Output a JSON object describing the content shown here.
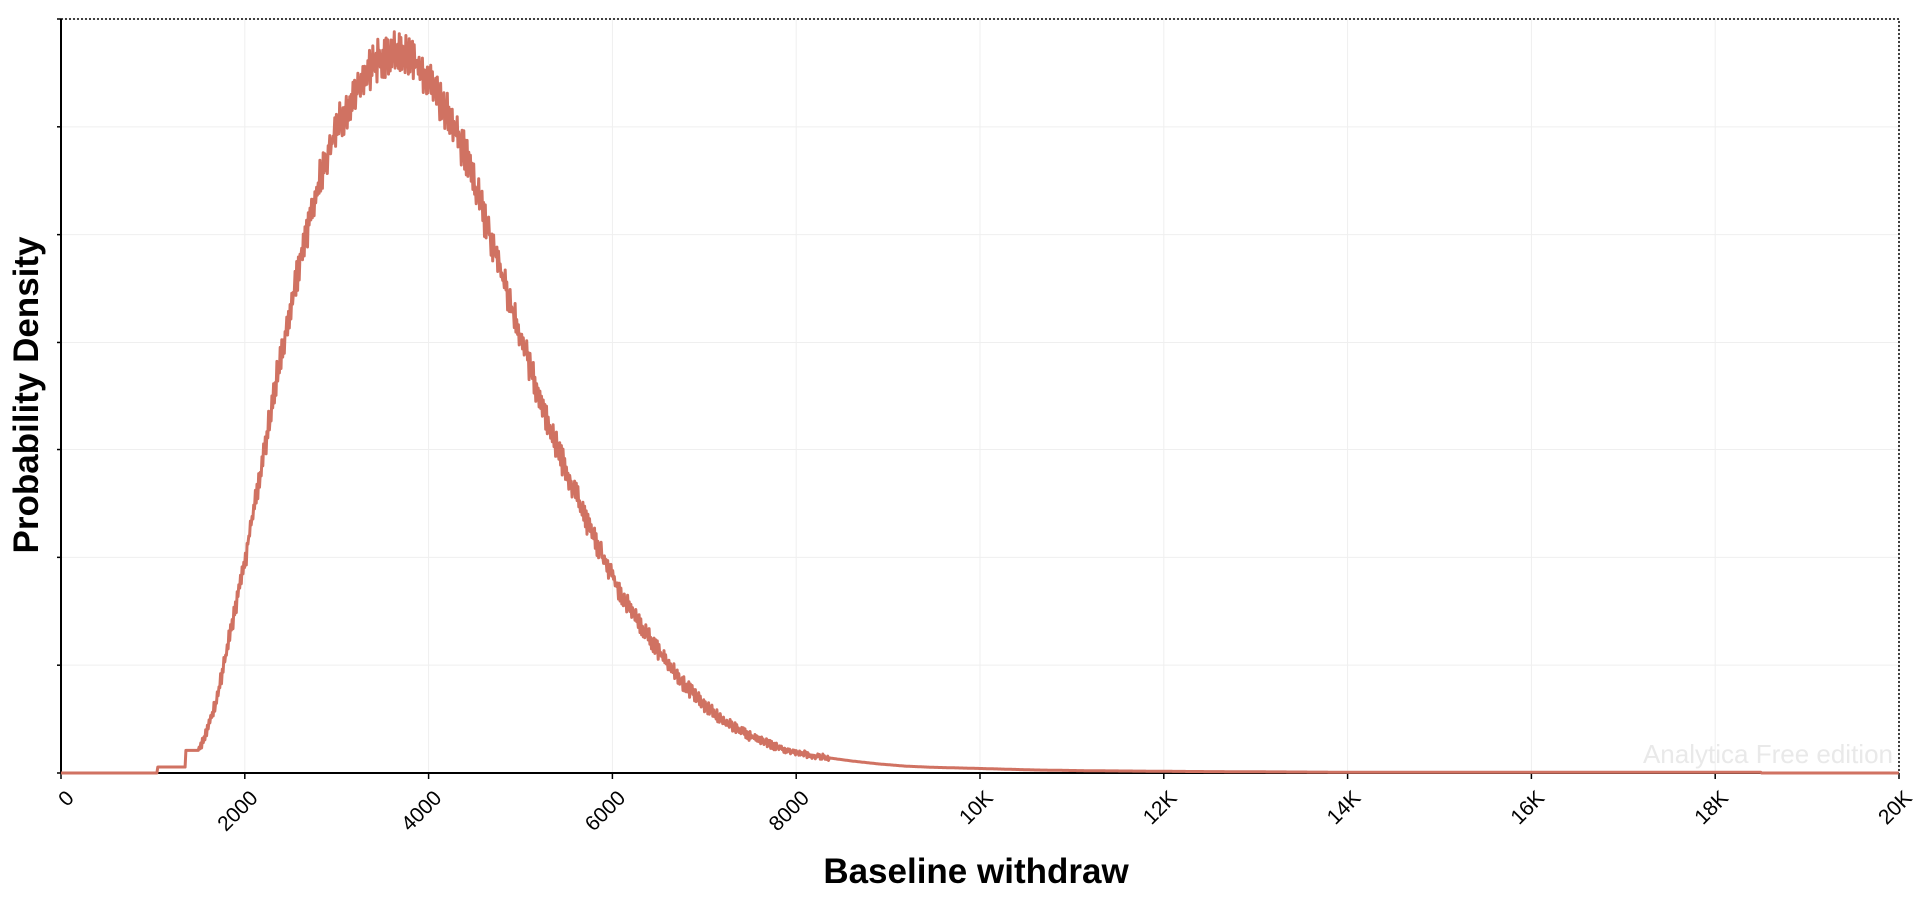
{
  "chart_data": {
    "type": "line",
    "xlabel": "Baseline withdraw",
    "ylabel": "Probability Density",
    "watermark": "Analytica Free edition",
    "xlim": [
      0,
      20000
    ],
    "ylim": [
      0,
      1.0
    ],
    "x_ticks": [
      {
        "value": 0,
        "label": "0"
      },
      {
        "value": 2000,
        "label": "2000"
      },
      {
        "value": 4000,
        "label": "4000"
      },
      {
        "value": 6000,
        "label": "6000"
      },
      {
        "value": 8000,
        "label": "8000"
      },
      {
        "value": 10000,
        "label": "10K"
      },
      {
        "value": 12000,
        "label": "12K"
      },
      {
        "value": 14000,
        "label": "14K"
      },
      {
        "value": 16000,
        "label": "16K"
      },
      {
        "value": 18000,
        "label": "18K"
      },
      {
        "value": 20000,
        "label": "20K"
      }
    ],
    "y_ticks": [
      0,
      0.143,
      0.286,
      0.429,
      0.571,
      0.714,
      0.857,
      1.0
    ],
    "y_tick_labels_shown": false,
    "grid": true,
    "line_color": "#d07262",
    "series": [
      {
        "values": [
          [
            0,
            0
          ],
          [
            1050,
            0
          ],
          [
            1050,
            0.008
          ],
          [
            1350,
            0.008
          ],
          [
            1350,
            0.03
          ],
          [
            1500,
            0.03
          ],
          [
            1600,
            0.06
          ],
          [
            1700,
            0.1
          ],
          [
            1800,
            0.16
          ],
          [
            1900,
            0.22
          ],
          [
            2000,
            0.28
          ],
          [
            2100,
            0.35
          ],
          [
            2200,
            0.42
          ],
          [
            2300,
            0.49
          ],
          [
            2400,
            0.56
          ],
          [
            2500,
            0.62
          ],
          [
            2600,
            0.68
          ],
          [
            2700,
            0.73
          ],
          [
            2800,
            0.78
          ],
          [
            2900,
            0.82
          ],
          [
            3000,
            0.855
          ],
          [
            3100,
            0.88
          ],
          [
            3200,
            0.9
          ],
          [
            3300,
            0.92
          ],
          [
            3400,
            0.94
          ],
          [
            3500,
            0.95
          ],
          [
            3600,
            0.955
          ],
          [
            3700,
            0.96
          ],
          [
            3800,
            0.95
          ],
          [
            3900,
            0.935
          ],
          [
            4000,
            0.92
          ],
          [
            4100,
            0.9
          ],
          [
            4200,
            0.875
          ],
          [
            4300,
            0.85
          ],
          [
            4400,
            0.82
          ],
          [
            4500,
            0.78
          ],
          [
            4600,
            0.74
          ],
          [
            4700,
            0.7
          ],
          [
            4800,
            0.66
          ],
          [
            4900,
            0.62
          ],
          [
            5000,
            0.58
          ],
          [
            5200,
            0.5
          ],
          [
            5400,
            0.43
          ],
          [
            5600,
            0.37
          ],
          [
            5800,
            0.31
          ],
          [
            6000,
            0.26
          ],
          [
            6200,
            0.215
          ],
          [
            6400,
            0.18
          ],
          [
            6600,
            0.145
          ],
          [
            6800,
            0.115
          ],
          [
            7000,
            0.09
          ],
          [
            7200,
            0.07
          ],
          [
            7400,
            0.055
          ],
          [
            7600,
            0.043
          ],
          [
            7800,
            0.034
          ],
          [
            8000,
            0.027
          ],
          [
            8300,
            0.021
          ],
          [
            8600,
            0.016
          ],
          [
            8900,
            0.012
          ],
          [
            9200,
            0.009
          ],
          [
            9500,
            0.0075
          ],
          [
            10000,
            0.006
          ],
          [
            10600,
            0.004
          ],
          [
            11200,
            0.003
          ],
          [
            12300,
            0.002
          ],
          [
            14000,
            0.001
          ],
          [
            18500,
            0.001
          ],
          [
            18500,
            0
          ],
          [
            20000,
            0
          ]
        ]
      }
    ]
  }
}
